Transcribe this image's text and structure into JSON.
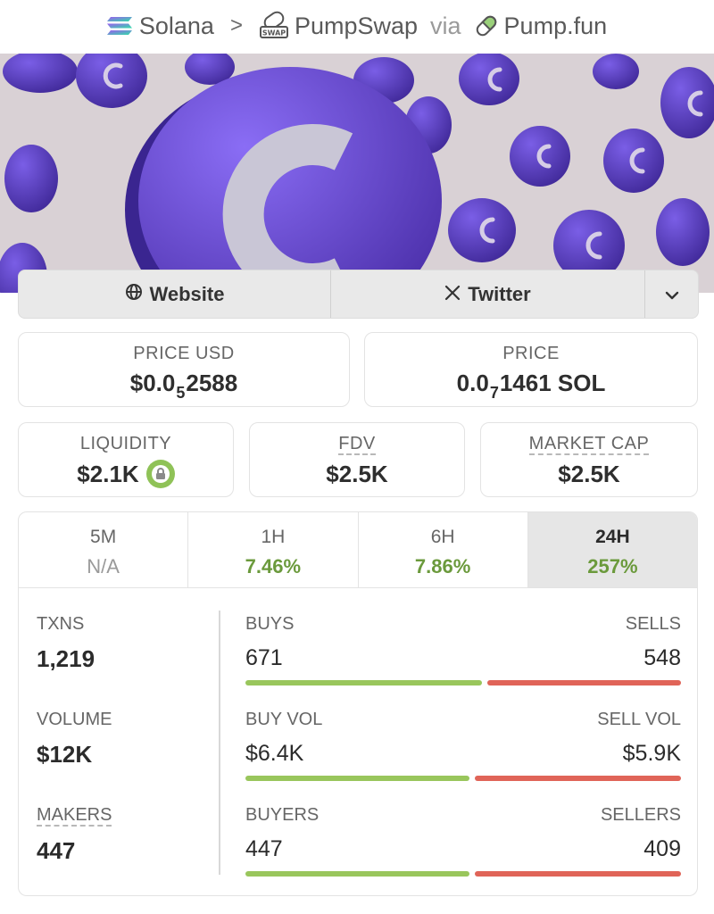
{
  "breadcrumb": {
    "chain": "Solana",
    "separator": ">",
    "dex": "PumpSwap",
    "swap_badge": "SWAP",
    "via": "via",
    "launchpad": "Pump.fun"
  },
  "links": {
    "website": "Website",
    "twitter": "Twitter"
  },
  "stats": {
    "price_usd": {
      "label": "PRICE USD",
      "prefix": "$0.0",
      "sub": "5",
      "suffix": "2588"
    },
    "price": {
      "label": "PRICE",
      "prefix": "0.0",
      "sub": "7",
      "suffix": "1461 SOL"
    },
    "liquidity": {
      "label": "LIQUIDITY",
      "value": "$2.1K"
    },
    "fdv": {
      "label": "FDV",
      "value": "$2.5K"
    },
    "market_cap": {
      "label": "MARKET CAP",
      "value": "$2.5K"
    }
  },
  "timeframes": [
    {
      "label": "5M",
      "value": "N/A"
    },
    {
      "label": "1H",
      "value": "7.46%"
    },
    {
      "label": "6H",
      "value": "7.86%"
    },
    {
      "label": "24H",
      "value": "257%"
    }
  ],
  "activity": {
    "txns": {
      "label": "TXNS",
      "value": "1,219"
    },
    "volume": {
      "label": "VOLUME",
      "value": "$12K"
    },
    "makers": {
      "label": "MAKERS",
      "value": "447"
    },
    "buys": {
      "label": "BUYS",
      "value": "671",
      "share": 0.55
    },
    "sells": {
      "label": "SELLS",
      "value": "548"
    },
    "buy_vol": {
      "label": "BUY VOL",
      "value": "$6.4K",
      "share": 0.52
    },
    "sell_vol": {
      "label": "SELL VOL",
      "value": "$5.9K"
    },
    "buyers": {
      "label": "BUYERS",
      "value": "447",
      "share": 0.52
    },
    "sellers": {
      "label": "SELLERS",
      "value": "409"
    }
  },
  "colors": {
    "buy": "#99c65c",
    "sell": "#e06458",
    "positive": "#6b9a3c"
  }
}
